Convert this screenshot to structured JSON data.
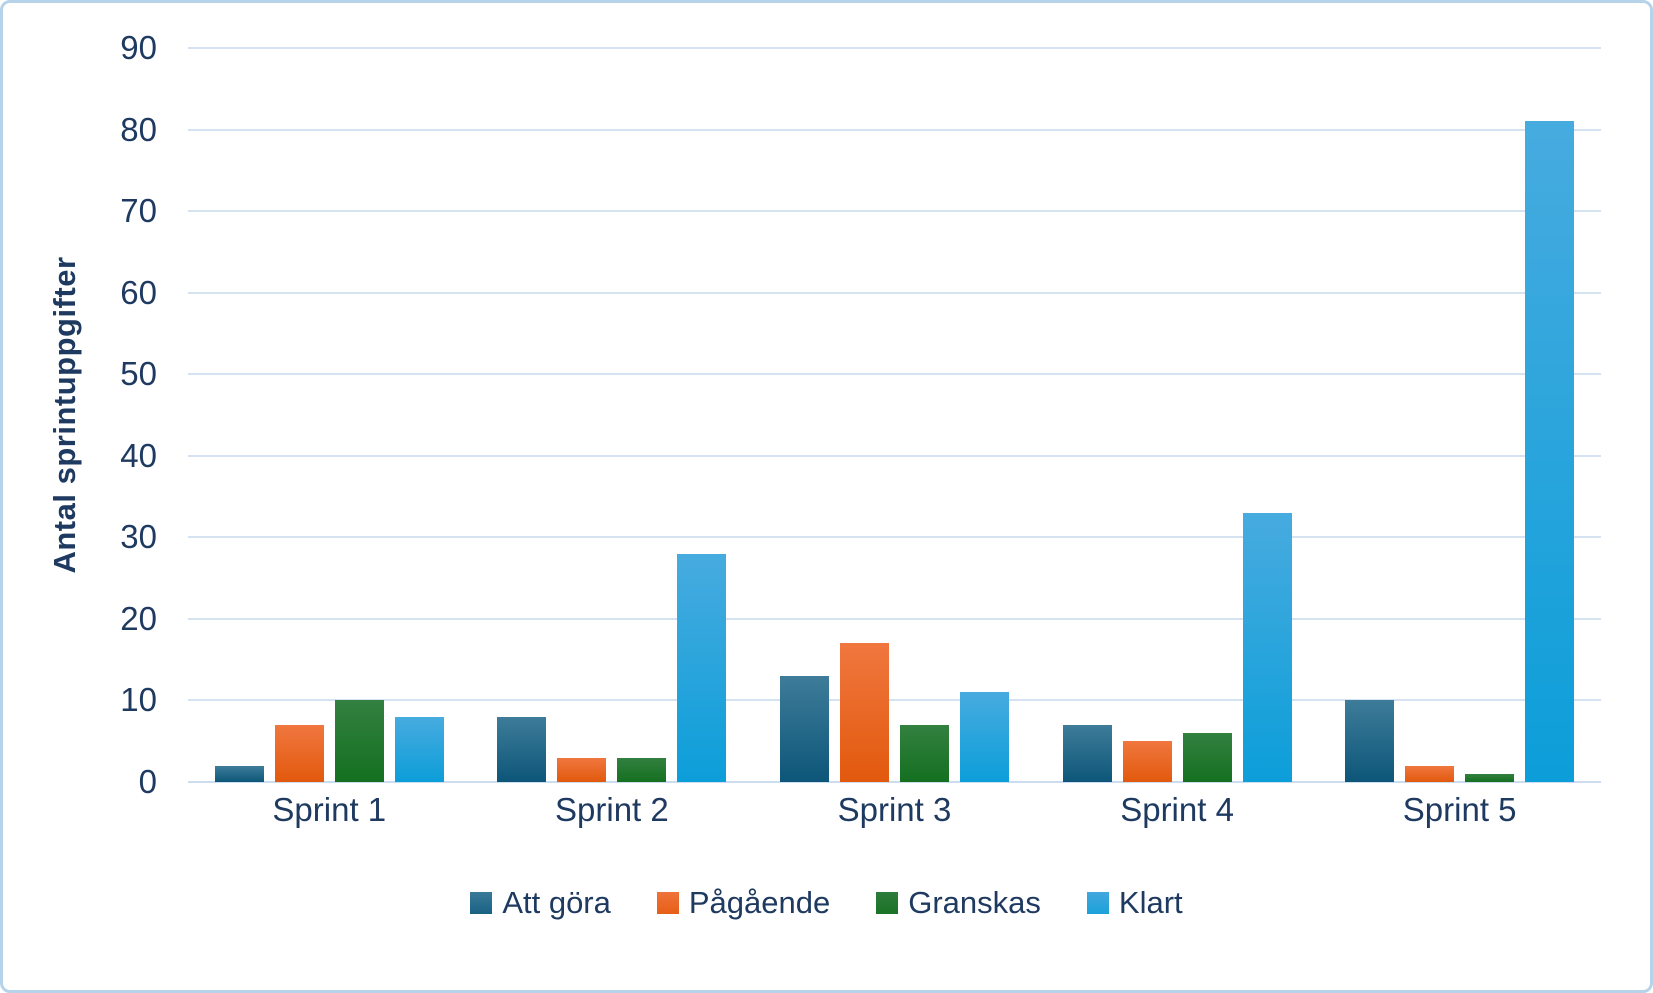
{
  "chart_data": {
    "type": "bar",
    "title": "",
    "ylabel": "Antal sprintuppgifter",
    "xlabel": "",
    "categories": [
      "Sprint 1",
      "Sprint 2",
      "Sprint 3",
      "Sprint 4",
      "Sprint 5"
    ],
    "series": [
      {
        "name": "Att göra",
        "values": [
          2,
          8,
          13,
          7,
          10
        ],
        "color_top": "#3e7c99",
        "color_bottom": "#0d5679",
        "legend_color_top": "#3a7a97",
        "legend_color_bottom": "#196184"
      },
      {
        "name": "Pågående",
        "values": [
          7,
          3,
          17,
          5,
          2
        ],
        "color_top": "#f0773f",
        "color_bottom": "#e2590d",
        "legend_color_top": "#ef733a",
        "legend_color_bottom": "#e65f17"
      },
      {
        "name": "Granskas",
        "values": [
          10,
          3,
          7,
          6,
          1
        ],
        "color_top": "#338040",
        "color_bottom": "#147020",
        "legend_color_top": "#2e7c3a",
        "legend_color_bottom": "#1a7326"
      },
      {
        "name": "Klart",
        "values": [
          8,
          28,
          11,
          33,
          81
        ],
        "color_top": "#47abdf",
        "color_bottom": "#0c9ed9",
        "legend_color_top": "#42a8dd",
        "legend_color_bottom": "#1ba1da"
      }
    ],
    "ylim": [
      0,
      90
    ],
    "yticks": [
      0,
      10,
      20,
      30,
      40,
      50,
      60,
      70,
      80,
      90
    ],
    "grid": true,
    "legend_position": "bottom"
  },
  "colors": {
    "background": "#ffffff",
    "border": "#b7d3ea",
    "gridline": "#d5e2f1",
    "axis_line": "#cdddf0",
    "text": "#1f3a60"
  }
}
